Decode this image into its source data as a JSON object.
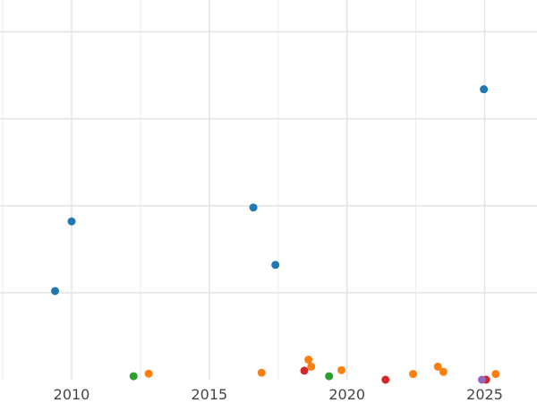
{
  "chart_data": {
    "type": "scatter",
    "title": "",
    "xlabel": "",
    "ylabel": "",
    "grid": true,
    "legend": "none",
    "xlim": [
      2007.4,
      2026.9
    ],
    "ylim": [
      0,
      20.8
    ],
    "x_ticks": [
      2010,
      2015,
      2020,
      2025
    ],
    "x_tick_labels": [
      "2010",
      "2015",
      "2020",
      "2025"
    ],
    "y_gridlines": [
      5,
      10,
      15,
      20
    ],
    "series": [
      {
        "color": "#1f77b4",
        "points": [
          {
            "x": 2009.4,
            "y": 5.1
          },
          {
            "x": 2010.0,
            "y": 9.1
          },
          {
            "x": 2016.6,
            "y": 9.9
          },
          {
            "x": 2017.4,
            "y": 6.6
          },
          {
            "x": 2024.97,
            "y": 16.7
          }
        ]
      },
      {
        "color": "#ff7f0e",
        "points": [
          {
            "x": 2012.8,
            "y": 0.35
          },
          {
            "x": 2016.9,
            "y": 0.4
          },
          {
            "x": 2018.6,
            "y": 1.15
          },
          {
            "x": 2018.7,
            "y": 0.75
          },
          {
            "x": 2019.8,
            "y": 0.55
          },
          {
            "x": 2022.4,
            "y": 0.33
          },
          {
            "x": 2023.3,
            "y": 0.75
          },
          {
            "x": 2023.5,
            "y": 0.45
          },
          {
            "x": 2025.4,
            "y": 0.33
          }
        ]
      },
      {
        "color": "#2ca02c",
        "points": [
          {
            "x": 2012.25,
            "y": 0.2
          },
          {
            "x": 2019.35,
            "y": 0.2
          }
        ]
      },
      {
        "color": "#d62728",
        "points": [
          {
            "x": 2018.45,
            "y": 0.52
          },
          {
            "x": 2021.4,
            "y": 0.0
          },
          {
            "x": 2025.05,
            "y": 0.0
          }
        ]
      },
      {
        "color": "#9467bd",
        "points": [
          {
            "x": 2024.9,
            "y": 0.0
          }
        ]
      }
    ]
  }
}
